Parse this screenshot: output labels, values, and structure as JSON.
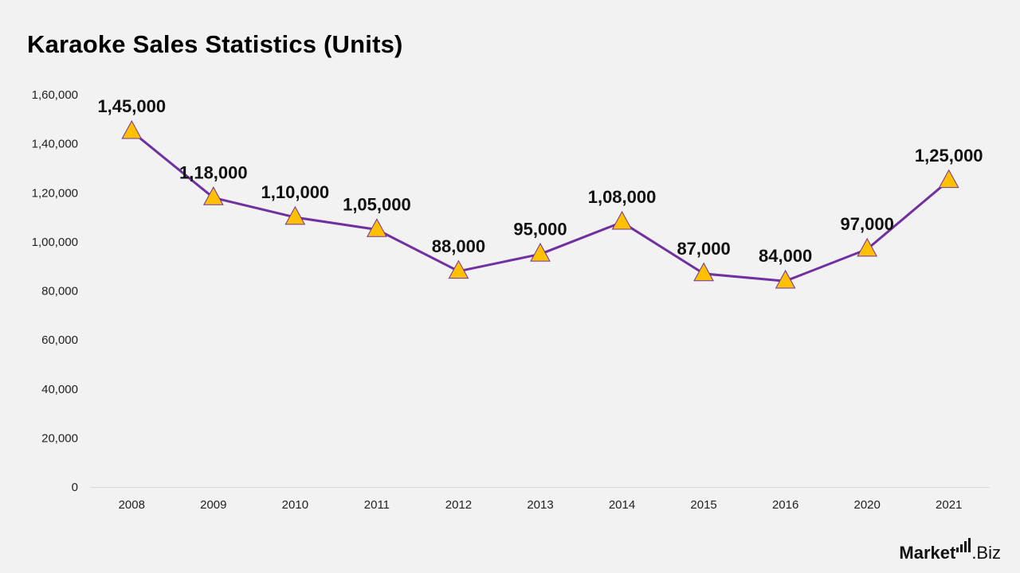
{
  "title": "Karaoke Sales Statistics (Units)",
  "brand": {
    "name": "Market",
    "suffix": ".Biz"
  },
  "colors": {
    "line": "#7030a0",
    "marker_fill": "#ffc000",
    "marker_stroke": "#7030a0",
    "background": "#f2f2f2",
    "axis": "#d9d9d9"
  },
  "chart_data": {
    "type": "line",
    "title": "Karaoke Sales Statistics (Units)",
    "categories": [
      "2008",
      "2009",
      "2010",
      "2011",
      "2012",
      "2013",
      "2014",
      "2015",
      "2016",
      "2020",
      "2021"
    ],
    "series": [
      {
        "values": [
          145000,
          118000,
          110000,
          105000,
          88000,
          95000,
          108000,
          87000,
          84000,
          97000,
          125000
        ],
        "data_labels": [
          "1,45,000",
          "1,18,000",
          "1,10,000",
          "1,05,000",
          "88,000",
          "95,000",
          "1,08,000",
          "87,000",
          "84,000",
          "97,000",
          "1,25,000"
        ],
        "marker": "triangle"
      }
    ],
    "ylim": [
      0,
      160000
    ],
    "yticks": [
      0,
      20000,
      40000,
      60000,
      80000,
      100000,
      120000,
      140000,
      160000
    ],
    "ytick_labels": [
      "0",
      "20,000",
      "40,000",
      "60,000",
      "80,000",
      "1,00,000",
      "1,20,000",
      "1,40,000",
      "1,60,000"
    ],
    "grid": false,
    "legend": "none"
  }
}
